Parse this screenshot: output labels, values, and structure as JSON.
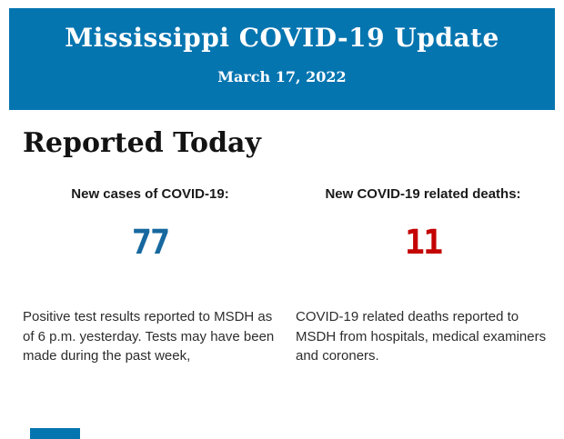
{
  "banner": {
    "title": "Mississippi COVID-19 Update",
    "date": "March 17, 2022"
  },
  "section": {
    "heading": "Reported Today"
  },
  "stats": [
    {
      "label": "New cases of COVID-19:",
      "value": "77",
      "value_color": "#17689f",
      "description_lines": [
        "Positive test results reported to MSDH as",
        "of 6 p.m. yesterday. Tests may have been",
        "made during the past week,"
      ]
    },
    {
      "label": "New COVID-19 related deaths:",
      "value": "11",
      "value_color": "#c40303",
      "description_lines": [
        "COVID-19 related deaths reported to",
        "MSDH from hospitals, medical examiners",
        "and coroners."
      ]
    }
  ],
  "colors": {
    "banner_blue": "#0575b0",
    "cases_blue": "#17689f",
    "deaths_red": "#c40303"
  }
}
